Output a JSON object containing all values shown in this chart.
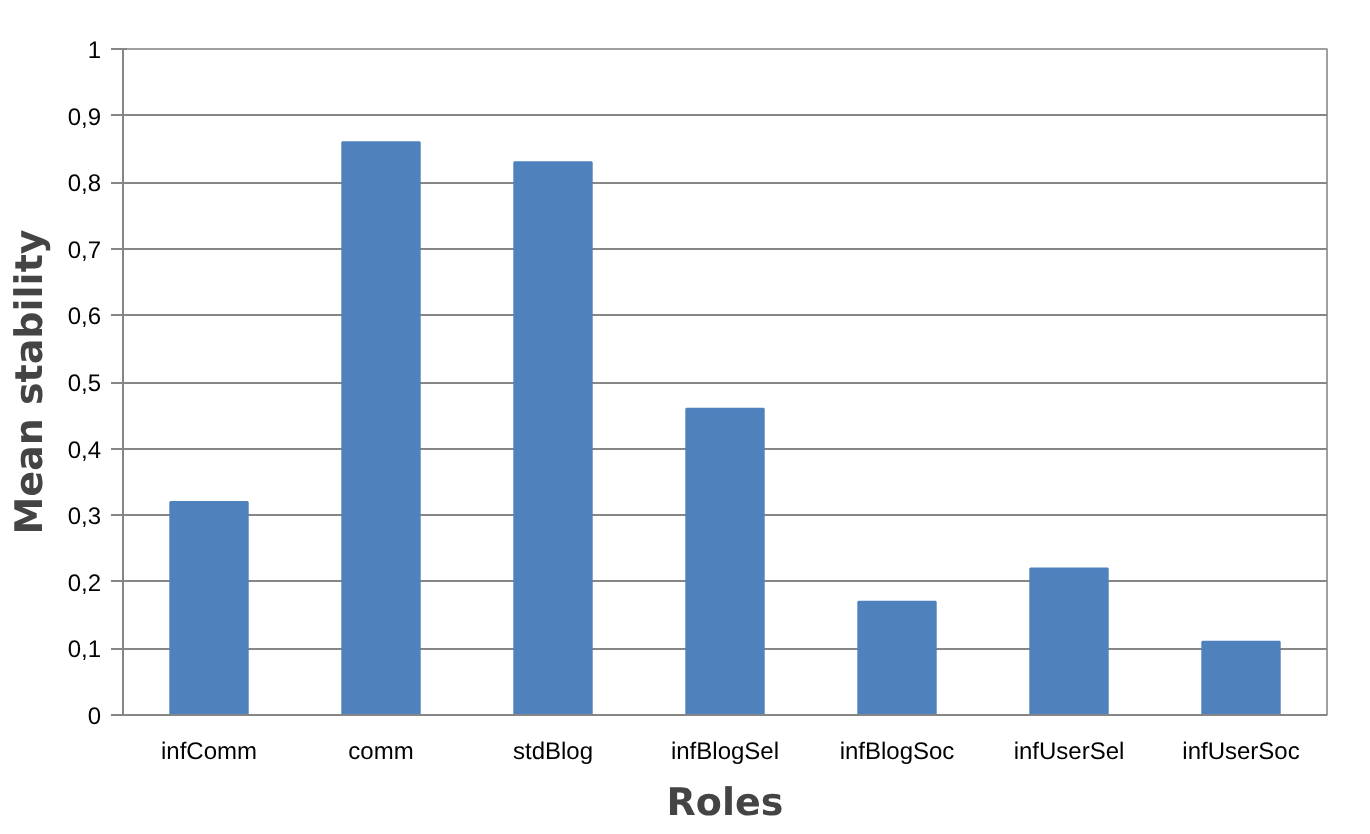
{
  "chart_data": {
    "type": "bar",
    "xlabel": "Roles",
    "ylabel": "Mean stability",
    "categories": [
      "infComm",
      "comm",
      "stdBlog",
      "infBlogSel",
      "infBlogSoc",
      "infUserSel",
      "infUserSoc"
    ],
    "values": [
      0.32,
      0.86,
      0.83,
      0.46,
      0.17,
      0.22,
      0.11
    ],
    "color": "#4f81bd",
    "ylim": [
      0,
      1
    ],
    "yticks": [
      0,
      {
        "value": 0.1,
        "label": "0,1"
      },
      {
        "value": 0.2,
        "label": "0,2"
      },
      {
        "value": 0.3,
        "label": "0,3"
      },
      {
        "value": 0.4,
        "label": "0,4"
      },
      {
        "value": 0.5,
        "label": "0,5"
      },
      {
        "value": 0.6,
        "label": "0,6"
      },
      {
        "value": 0.7,
        "label": "0,7"
      },
      {
        "value": 0.8,
        "label": "0,8"
      },
      {
        "value": 0.9,
        "label": "0,9"
      },
      1
    ],
    "grid": "y"
  }
}
